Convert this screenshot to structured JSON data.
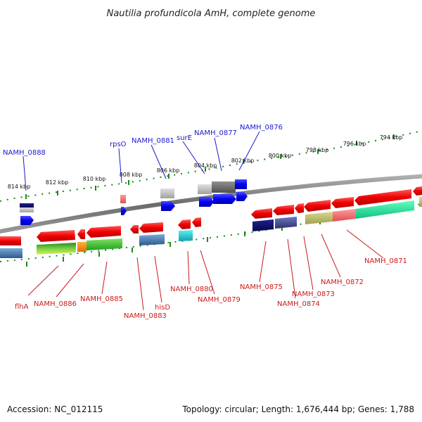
{
  "title": "Nautilia profundicola AmH, complete genome",
  "footer": {
    "accession": "Accession: NC_012115",
    "summary": "Topology: circular; Length: 1,676,444 bp; Genes: 1,788"
  },
  "colors": {
    "forward_label": "#1a1acc",
    "reverse_label": "#cc1a1a",
    "backbone": "#808080",
    "ticks": "#1a8a1a"
  },
  "kbp_labels": [
    "814 kbp",
    "812 kbp",
    "810 kbp",
    "808 kbp",
    "806 kbp",
    "804 kbp",
    "802 kbp",
    "800 kbp",
    "798 kbp",
    "796 kbp",
    "794 kbp"
  ],
  "forward_gene_labels": [
    "NAMH_0888",
    "rpsO",
    "NAMH_0881",
    "surE",
    "NAMH_0877",
    "NAMH_0876"
  ],
  "reverse_gene_labels": [
    "flhA",
    "NAMH_0886",
    "NAMH_0885",
    "NAMH_0883",
    "hisD",
    "NAMH_0880",
    "NAMH_0879",
    "NAMH_0875",
    "NAMH_0874",
    "NAMH_0873",
    "NAMH_0872",
    "NAMH_0871"
  ]
}
